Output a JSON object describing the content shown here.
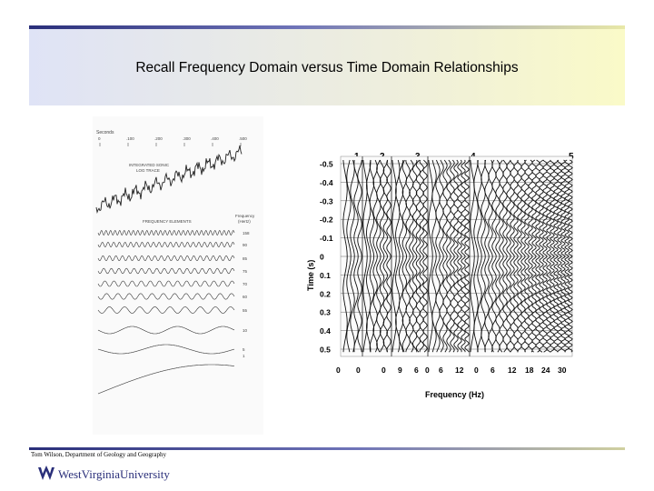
{
  "slide": {
    "title": "Recall Frequency Domain versus Time Domain Relationships",
    "footer": "Tom Wilson, Department of Geology and Geography",
    "university": "WestVirginiaUniversity"
  },
  "left_figure": {
    "seconds_label": "Seconds",
    "seconds_ticks": [
      "0",
      ".100",
      ".200",
      ".300",
      ".400",
      ".500"
    ],
    "trace_label_1": "INTEGRATED SONIC",
    "trace_label_2": "LOG TRACE",
    "elements_label": "FREQUENCY ELEMENTS",
    "freq_header_1": "Frequency",
    "freq_header_2": "(Hertz)",
    "freq_values": [
      "158",
      "90",
      "85",
      "75",
      "70",
      "60",
      "55",
      "10",
      "5",
      "1"
    ]
  },
  "right_figure": {
    "column_numbers": [
      "1",
      "2",
      "3",
      "4",
      "5"
    ],
    "time_ticks": [
      "-0.5",
      "-0.4",
      "-0.3",
      "-0.2",
      "-0.1",
      "0",
      "0.1",
      "0.2",
      "0.3",
      "0.4",
      "0.5"
    ],
    "freq_ticks": [
      "0",
      "0",
      "0",
      "9",
      "6",
      "0",
      "6",
      "12",
      "0",
      "6",
      "12",
      "18",
      "24",
      "30"
    ],
    "ylabel": "Time (s)",
    "xlabel": "Frequency (Hz)"
  },
  "colors": {
    "brand_navy": "#2a2f7a",
    "rule_light": "#e8e8a8",
    "band_blue": "#dfe3f6",
    "band_yellow": "#fafac8"
  }
}
